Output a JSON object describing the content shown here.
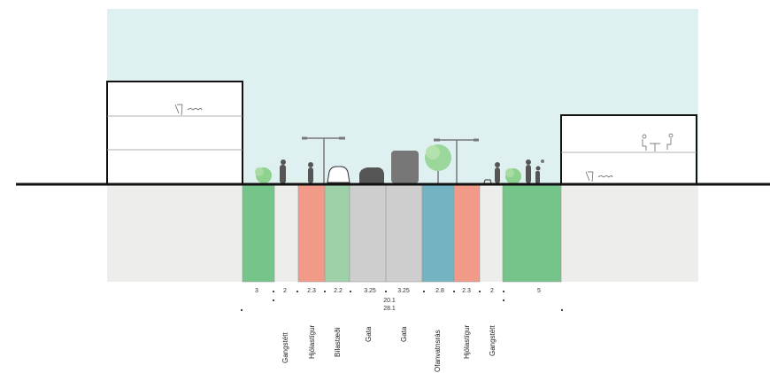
{
  "colors": {
    "sky": "#dff0f0",
    "ground": "#ededeb",
    "green": "#75c489",
    "bike": "#f19a87",
    "parking": "#9fd1a8",
    "road": "#cecece",
    "water": "#74b3c1",
    "line": "#111111",
    "figure": "#555555"
  },
  "widths": [
    {
      "value": "3"
    },
    {
      "value": "2"
    },
    {
      "value": "2.3"
    },
    {
      "value": "2.2"
    },
    {
      "value": "3.25"
    },
    {
      "value": "3.25"
    },
    {
      "value": "2.8"
    },
    {
      "value": "2.3"
    },
    {
      "value": "2"
    },
    {
      "value": "5"
    }
  ],
  "totals": {
    "inner": "20.1",
    "overall": "28.1"
  },
  "zone_labels": [
    "Gangstétt",
    "Hjólastígur",
    "Bílastæði",
    "Gata",
    "Gata",
    "Ofanvatnsrás",
    "Hjólastígur",
    "Gangstétt"
  ]
}
